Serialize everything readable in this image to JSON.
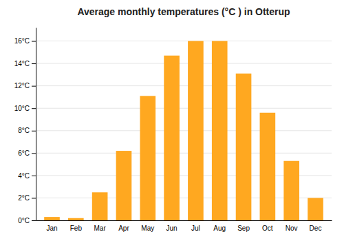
{
  "chart_data": {
    "type": "bar",
    "title": "Average monthly temperatures (°C ) in Otterup",
    "categories": [
      "Jan",
      "Feb",
      "Mar",
      "Apr",
      "May",
      "Jun",
      "Jul",
      "Aug",
      "Sep",
      "Oct",
      "Nov",
      "Dec"
    ],
    "values": [
      0.3,
      0.2,
      2.5,
      6.2,
      11.1,
      14.7,
      16.0,
      16.0,
      13.1,
      9.6,
      5.3,
      2.0
    ],
    "color": "#FFA820",
    "ylim": [
      0,
      17.2
    ],
    "yticks": [
      {
        "value": 0,
        "label": "0°C"
      },
      {
        "value": 2,
        "label": "2°C"
      },
      {
        "value": 4,
        "label": "4°C"
      },
      {
        "value": 6,
        "label": "6°C"
      },
      {
        "value": 8,
        "label": "8°C"
      },
      {
        "value": 10,
        "label": "10°C"
      },
      {
        "value": 12,
        "label": "12°C"
      },
      {
        "value": 14,
        "label": "14°C"
      },
      {
        "value": 16,
        "label": "16°C"
      }
    ],
    "grid": true
  }
}
